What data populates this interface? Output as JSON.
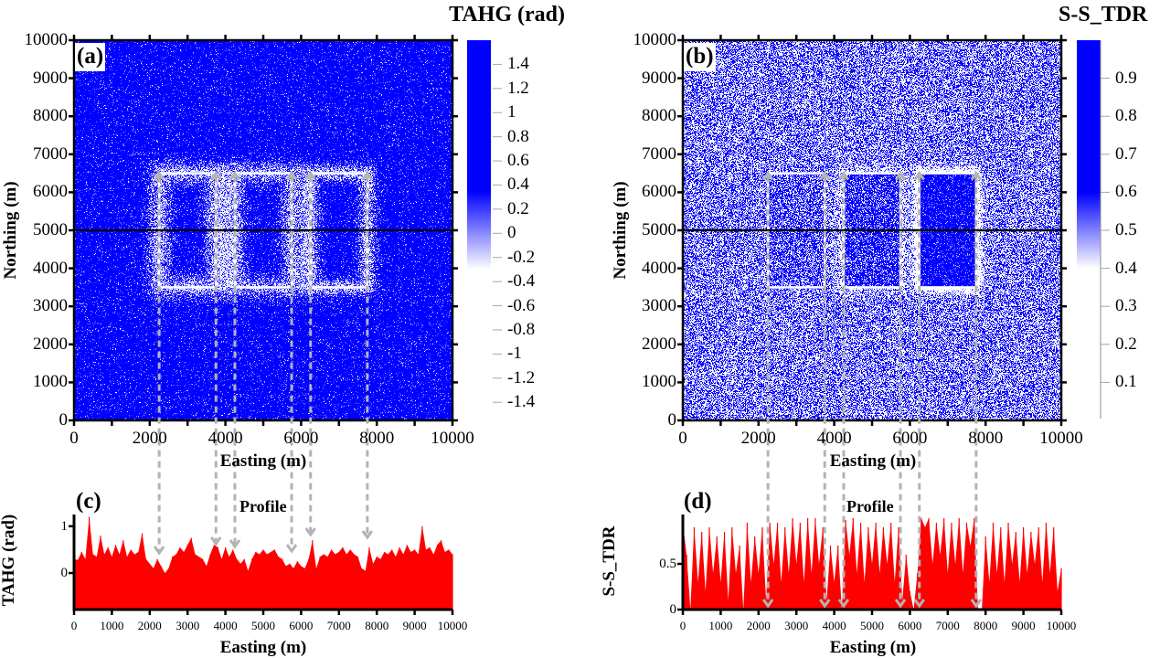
{
  "chart_data": [
    {
      "panel_label": "(a)",
      "type": "heatmap",
      "title": "TAHG (rad)",
      "xlabel": "Easting (m)",
      "ylabel": "Northing (m)",
      "xlim": [
        0,
        10000
      ],
      "ylim": [
        0,
        10000
      ],
      "xticks": [
        0,
        1000,
        2000,
        3000,
        4000,
        5000,
        6000,
        7000,
        8000,
        9000,
        10000
      ],
      "xticklabels": [
        "0",
        "",
        "2000",
        "",
        "4000",
        "",
        "6000",
        "",
        "8000",
        "",
        "10000"
      ],
      "yticks": [
        0,
        1000,
        2000,
        3000,
        4000,
        5000,
        6000,
        7000,
        8000,
        9000,
        10000
      ],
      "yticklabels": [
        "0",
        "1000",
        "2000",
        "3000",
        "4000",
        "5000",
        "6000",
        "7000",
        "8000",
        "9000",
        "10000"
      ],
      "colorbar": {
        "range": [
          -1.55,
          1.6
        ],
        "ticks": [
          1.4,
          1.2,
          1,
          0.8,
          0.6,
          0.4,
          0.2,
          0,
          -0.2,
          -0.4,
          -0.6,
          -0.8,
          -1,
          -1.2,
          -1.4
        ],
        "ticklabels": [
          "1.4",
          "1.2",
          "1",
          "0.8",
          "0.6",
          "0.4",
          "0.2",
          "0",
          "-0.2",
          "-0.4",
          "-0.6",
          "-0.8",
          "-1",
          "-1.2",
          "-1.4"
        ],
        "colormap": [
          {
            "value": 0.35,
            "color": "#0000ff"
          },
          {
            "value": -0.3,
            "color": "#ffffff"
          }
        ]
      },
      "field": {
        "background": 0.9,
        "noise": "gaussian",
        "noise_level": 0.5
      },
      "anomalies": [
        {
          "x0": 2250,
          "x1": 3750,
          "y0": 3500,
          "y1": 6500,
          "interior_offset": 0,
          "edge_anomaly": -1.0,
          "edge_width": 350,
          "edge_side": "both"
        },
        {
          "x0": 4250,
          "x1": 5750,
          "y0": 3500,
          "y1": 6500,
          "interior_offset": 0,
          "edge_anomaly": -0.95,
          "edge_width": 330,
          "edge_side": "both"
        },
        {
          "x0": 6250,
          "x1": 7750,
          "y0": 3500,
          "y1": 6500,
          "interior_offset": 0,
          "edge_anomaly": -1.05,
          "edge_width": 260,
          "edge_side": "both"
        }
      ],
      "outline_color": "#ffffff",
      "profile_line": {
        "northing": 5000,
        "color": "#000000"
      },
      "arrows": {
        "eastings": [
          2250,
          3750,
          4250,
          5750,
          6250,
          7750
        ],
        "color": "#b3b3b3"
      }
    },
    {
      "panel_label": "(b)",
      "type": "heatmap",
      "title": "S-S_TDR",
      "xlabel": "Easting (m)",
      "ylabel": "Northing (m)",
      "xlim": [
        0,
        10000
      ],
      "ylim": [
        0,
        10000
      ],
      "xticks": [
        0,
        1000,
        2000,
        3000,
        4000,
        5000,
        6000,
        7000,
        8000,
        9000,
        10000
      ],
      "xticklabels": [
        "0",
        "",
        "2000",
        "",
        "4000",
        "",
        "6000",
        "",
        "8000",
        "",
        "10000"
      ],
      "yticks": [
        0,
        1000,
        2000,
        3000,
        4000,
        5000,
        6000,
        7000,
        8000,
        9000,
        10000
      ],
      "yticklabels": [
        "0",
        "1000",
        "2000",
        "3000",
        "4000",
        "5000",
        "6000",
        "7000",
        "8000",
        "9000",
        "10000"
      ],
      "colorbar": {
        "range": [
          0,
          1.0
        ],
        "ticks": [
          0.9,
          0.8,
          0.7,
          0.6,
          0.5,
          0.4,
          0.3,
          0.2,
          0.1
        ],
        "ticklabels": [
          "0.9",
          "0.8",
          "0.7",
          "0.6",
          "0.5",
          "0.4",
          "0.3",
          "0.2",
          "0.1"
        ],
        "colormap": [
          {
            "value": 0.6,
            "color": "#0000ff"
          },
          {
            "value": 0.4,
            "color": "#ffffff"
          }
        ]
      },
      "field": {
        "background": 0.5,
        "noise": "uniform",
        "noise_level": 1.0
      },
      "anomalies": [
        {
          "x0": 2250,
          "x1": 3750,
          "y0": 3500,
          "y1": 6500,
          "interior_offset": 0.12,
          "edge_anomaly": 0,
          "edge_width": 200,
          "edge_side": "outside"
        },
        {
          "x0": 4250,
          "x1": 5750,
          "y0": 3500,
          "y1": 6500,
          "interior_offset": 0.25,
          "edge_anomaly": -0.25,
          "edge_width": 200,
          "edge_side": "outside"
        },
        {
          "x0": 6250,
          "x1": 7750,
          "y0": 3500,
          "y1": 6500,
          "interior_offset": 0.42,
          "edge_anomaly": -0.5,
          "edge_width": 180,
          "edge_side": "outside"
        }
      ],
      "outline_color": "#ffffff",
      "profile_line": {
        "northing": 5000,
        "color": "#000000"
      },
      "arrows": {
        "eastings": [
          2250,
          3750,
          4250,
          5750,
          6250,
          7750
        ],
        "color": "#b3b3b3"
      }
    },
    {
      "panel_label": "(c)",
      "type": "area",
      "title": "Profile",
      "xlabel": "Easting (m)",
      "ylabel": "TAHG (rad)",
      "xlim": [
        0,
        10000
      ],
      "ylim": [
        -0.78,
        1.25
      ],
      "xticks": [
        0,
        1000,
        2000,
        3000,
        4000,
        5000,
        6000,
        7000,
        8000,
        9000,
        10000
      ],
      "xticklabels": [
        "0",
        "1000",
        "2000",
        "3000",
        "4000",
        "5000",
        "6000",
        "7000",
        "8000",
        "9000",
        "10000"
      ],
      "yticks": [
        0,
        1
      ],
      "yticklabels": [
        "0",
        "1"
      ],
      "fill_color": "#ff0000",
      "x_start": 0,
      "x_step": 100,
      "values": [
        0.3,
        0.28,
        0.45,
        0.3,
        1.2,
        0.4,
        0.35,
        0.8,
        0.4,
        0.55,
        0.35,
        0.6,
        0.4,
        0.7,
        0.35,
        0.5,
        0.4,
        0.45,
        0.85,
        0.3,
        0.2,
        0.1,
        0.3,
        0.15,
        0.0,
        0.1,
        0.35,
        0.4,
        0.55,
        0.45,
        0.6,
        0.75,
        0.4,
        0.35,
        0.3,
        0.15,
        0.4,
        0.6,
        0.55,
        0.3,
        0.55,
        0.35,
        0.5,
        0.3,
        0.2,
        0.3,
        0.05,
        0.3,
        0.45,
        0.4,
        0.5,
        0.4,
        0.45,
        0.5,
        0.35,
        0.3,
        0.15,
        0.2,
        0.1,
        0.25,
        0.15,
        0.1,
        0.3,
        0.7,
        0.1,
        0.35,
        0.4,
        0.35,
        0.5,
        0.4,
        0.45,
        0.55,
        0.4,
        0.5,
        0.4,
        0.35,
        0.1,
        0.05,
        0.55,
        0.2,
        0.35,
        0.3,
        0.45,
        0.4,
        0.5,
        0.35,
        0.55,
        0.4,
        0.6,
        0.45,
        0.5,
        0.4,
        1.0,
        0.5,
        0.55,
        0.4,
        0.6,
        0.7,
        0.45,
        0.5,
        0.4
      ]
    },
    {
      "panel_label": "(d)",
      "type": "area",
      "title": "Profile",
      "xlabel": "Easting (m)",
      "ylabel": "S-S_TDR",
      "xlim": [
        0,
        10000
      ],
      "ylim": [
        0,
        1.04
      ],
      "xticks": [
        0,
        1000,
        2000,
        3000,
        4000,
        5000,
        6000,
        7000,
        8000,
        9000,
        10000
      ],
      "xticklabels": [
        "0",
        "1000",
        "2000",
        "3000",
        "4000",
        "5000",
        "6000",
        "7000",
        "8000",
        "9000",
        "10000"
      ],
      "yticks": [
        0,
        0.5
      ],
      "yticklabels": [
        "0",
        "0.5"
      ],
      "fill_color": "#ff0000",
      "x_start": 0,
      "x_step": 100,
      "values": [
        0.95,
        0.6,
        0.0,
        0.9,
        0.3,
        0.85,
        0.2,
        0.9,
        0.4,
        0.8,
        0.3,
        0.85,
        0.1,
        0.9,
        0.4,
        0.7,
        0.0,
        0.95,
        0.3,
        0.8,
        0.4,
        0.9,
        0.1,
        0.95,
        0.5,
        0.95,
        0.3,
        0.9,
        0.4,
        1.0,
        0.5,
        0.95,
        0.3,
        1.0,
        0.4,
        1.0,
        0.5,
        0.9,
        0.1,
        0.7,
        0.3,
        0.7,
        0.0,
        0.98,
        0.6,
        1.0,
        0.4,
        0.95,
        0.3,
        0.9,
        0.5,
        0.95,
        0.4,
        0.9,
        0.5,
        0.95,
        0.3,
        0.9,
        0.1,
        0.6,
        0.2,
        0.0,
        0.4,
        1.0,
        0.9,
        1.0,
        0.5,
        0.95,
        0.6,
        1.0,
        0.4,
        0.95,
        0.5,
        1.0,
        0.4,
        0.95,
        0.7,
        1.0,
        0.0,
        0.0,
        0.8,
        0.3,
        0.95,
        0.4,
        0.9,
        0.3,
        0.95,
        0.5,
        0.85,
        0.3,
        0.9,
        0.4,
        0.85,
        0.5,
        0.9,
        0.3,
        0.95,
        0.4,
        0.9,
        0.2,
        0.45
      ]
    }
  ]
}
